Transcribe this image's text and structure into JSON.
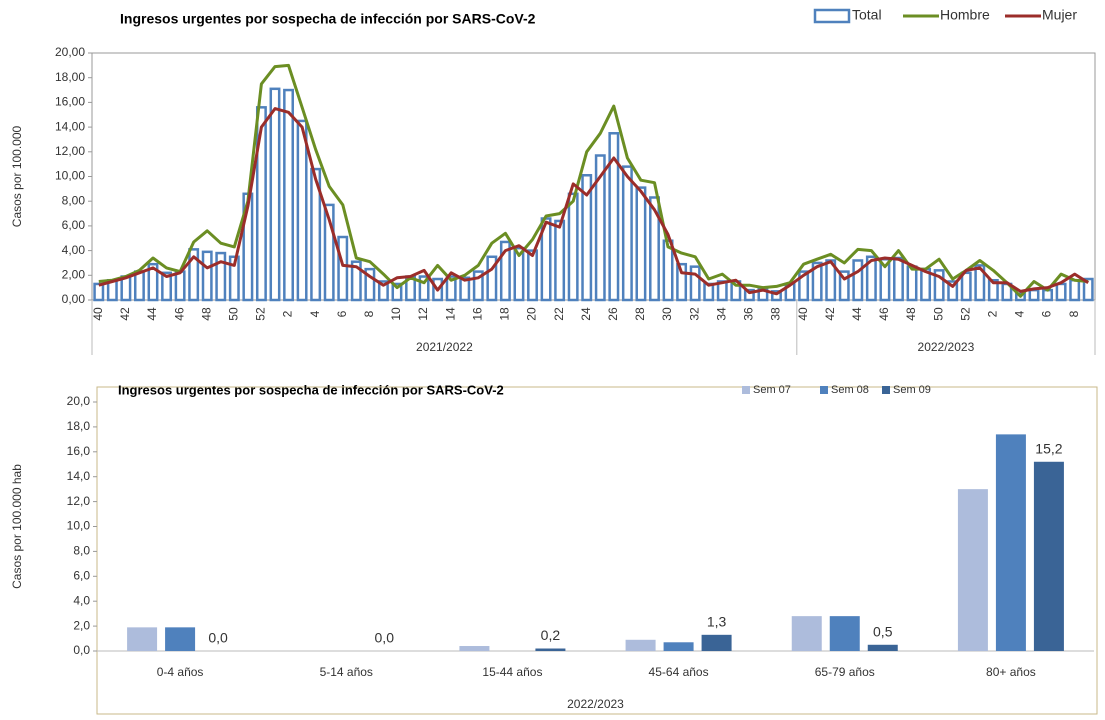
{
  "chart_data": [
    {
      "type": "bar",
      "title": "Ingresos urgentes por sospecha de infección por SARS-CoV-2",
      "y_label": "Casos por 100.000",
      "categories": [
        "40",
        null,
        "42",
        null,
        "44",
        null,
        "46",
        null,
        "48",
        null,
        "50",
        null,
        "52",
        null,
        "2",
        null,
        "4",
        null,
        "6",
        null,
        "8",
        null,
        "10",
        null,
        "12",
        null,
        "14",
        null,
        "16",
        null,
        "18",
        null,
        "20",
        null,
        "22",
        null,
        "24",
        null,
        "26",
        null,
        "28",
        null,
        "30",
        null,
        "32",
        null,
        "34",
        null,
        "36",
        null,
        "38",
        null,
        "40",
        null,
        "42",
        null,
        "44",
        null,
        "46",
        null,
        "48",
        null,
        "50",
        null,
        "52",
        null,
        "2",
        null,
        "4",
        null,
        "6",
        null,
        "8",
        null
      ],
      "x_groups": [
        {
          "label": "2021/2022",
          "size": 52
        },
        {
          "label": "2022/2023",
          "size": 22
        }
      ],
      "series": [
        {
          "name": "Total",
          "type": "bar",
          "style": "outline",
          "color": "#4f81bd",
          "values": [
            1.3,
            1.6,
            1.9,
            2.3,
            2.9,
            2.2,
            2.3,
            4.1,
            3.9,
            3.8,
            3.5,
            8.6,
            15.6,
            17.1,
            17.0,
            14.5,
            10.6,
            7.7,
            5.1,
            3.1,
            2.5,
            1.5,
            1.3,
            1.9,
            1.9,
            1.7,
            1.9,
            1.8,
            2.3,
            3.5,
            4.7,
            4.2,
            4.0,
            6.6,
            6.4,
            8.6,
            10.1,
            11.7,
            13.5,
            10.8,
            9.1,
            8.3,
            4.8,
            2.9,
            2.7,
            1.3,
            1.5,
            1.5,
            0.8,
            0.9,
            0.7,
            1.3,
            2.3,
            3.0,
            3.2,
            2.3,
            3.2,
            3.5,
            3.3,
            3.4,
            2.7,
            2.5,
            2.4,
            1.5,
            2.2,
            2.8,
            1.6,
            1.3,
            0.5,
            0.8,
            0.8,
            1.3,
            1.6,
            1.7
          ]
        },
        {
          "name": "Hombre",
          "type": "line",
          "color": "#6b8e23",
          "values": [
            1.5,
            1.6,
            1.9,
            2.4,
            3.4,
            2.6,
            2.3,
            4.7,
            5.6,
            4.6,
            4.3,
            8.0,
            17.5,
            18.9,
            19.0,
            15.6,
            12.2,
            9.2,
            7.7,
            3.4,
            3.1,
            2.1,
            1.0,
            1.8,
            1.4,
            2.8,
            1.6,
            2.0,
            2.8,
            4.6,
            5.4,
            3.6,
            4.9,
            6.8,
            7.0,
            8.0,
            12.0,
            13.5,
            15.7,
            11.5,
            9.7,
            9.5,
            4.3,
            3.8,
            3.5,
            1.7,
            2.1,
            1.2,
            1.2,
            1.0,
            1.1,
            1.4,
            2.9,
            3.3,
            3.7,
            3.0,
            4.1,
            4.0,
            2.7,
            4.0,
            2.5,
            2.5,
            3.3,
            1.7,
            2.4,
            3.2,
            2.4,
            1.4,
            0.3,
            1.5,
            0.8,
            2.1,
            1.6,
            1.5
          ]
        },
        {
          "name": "Mujer",
          "type": "line",
          "color": "#9b2d2a",
          "values": [
            1.2,
            1.5,
            1.8,
            2.2,
            2.6,
            1.9,
            2.2,
            3.5,
            2.6,
            3.1,
            2.8,
            7.6,
            14.0,
            15.5,
            15.2,
            14.0,
            9.8,
            6.5,
            2.8,
            2.7,
            1.9,
            1.2,
            1.8,
            1.9,
            2.4,
            0.8,
            2.2,
            1.6,
            1.8,
            2.5,
            4.0,
            4.4,
            3.6,
            6.3,
            5.9,
            9.4,
            8.5,
            10.0,
            11.5,
            10.0,
            8.8,
            7.3,
            5.3,
            2.2,
            2.1,
            1.2,
            1.4,
            1.6,
            0.6,
            0.8,
            0.5,
            1.2,
            2.0,
            2.7,
            3.1,
            1.7,
            2.3,
            3.2,
            3.4,
            3.3,
            2.8,
            2.3,
            1.9,
            1.1,
            2.4,
            2.6,
            1.4,
            1.4,
            0.7,
            0.9,
            1.0,
            1.4,
            2.1,
            1.4
          ]
        }
      ],
      "ylim": [
        0,
        20
      ],
      "yticks": [
        {
          "value": 0,
          "label": "0,00"
        },
        {
          "value": 2,
          "label": "2,00"
        },
        {
          "value": 4,
          "label": "4,00"
        },
        {
          "value": 6,
          "label": "6,00"
        },
        {
          "value": 8,
          "label": "8,00"
        },
        {
          "value": 10,
          "label": "10,00"
        },
        {
          "value": 12,
          "label": "12,00"
        },
        {
          "value": 14,
          "label": "14,00"
        },
        {
          "value": 16,
          "label": "16,00"
        },
        {
          "value": 18,
          "label": "18,00"
        },
        {
          "value": 20,
          "label": "20,00"
        }
      ],
      "grid": false,
      "legend": "top-right"
    },
    {
      "type": "bar",
      "title": "Ingresos urgentes por sospecha de infección por SARS-CoV-2",
      "y_label": "Casos por 100.000 hab",
      "x_label": "2022/2023",
      "categories": [
        "0-4 años",
        "5-14 años",
        "15-44 años",
        "45-64 años",
        "65-79 años",
        "80+ años"
      ],
      "series": [
        {
          "name": "Sem 07",
          "type": "bar",
          "color": "#adbcdc",
          "values": [
            1.9,
            0,
            0.4,
            0.9,
            2.8,
            13.0
          ]
        },
        {
          "name": "Sem 08",
          "type": "bar",
          "color": "#4f81bd",
          "values": [
            1.9,
            0,
            0,
            0.7,
            2.8,
            17.4
          ]
        },
        {
          "name": "Sem 09",
          "type": "bar",
          "color": "#3a6496",
          "values": [
            0.0,
            0.0,
            0.2,
            1.3,
            0.5,
            15.2
          ],
          "value_labels": [
            "0,0",
            "0,0",
            "0,2",
            "1,3",
            "0,5",
            "15,2"
          ]
        }
      ],
      "ylim": [
        0,
        20
      ],
      "yticks": [
        {
          "value": 0,
          "label": "0,0"
        },
        {
          "value": 2,
          "label": "2,0"
        },
        {
          "value": 4,
          "label": "4,0"
        },
        {
          "value": 6,
          "label": "6,0"
        },
        {
          "value": 8,
          "label": "8,0"
        },
        {
          "value": 10,
          "label": "10,0"
        },
        {
          "value": 12,
          "label": "12,0"
        },
        {
          "value": 14,
          "label": "14,0"
        },
        {
          "value": 16,
          "label": "16,0"
        },
        {
          "value": 18,
          "label": "18,0"
        },
        {
          "value": 20,
          "label": "20,0"
        }
      ],
      "grid": false,
      "legend": "top-right"
    }
  ]
}
